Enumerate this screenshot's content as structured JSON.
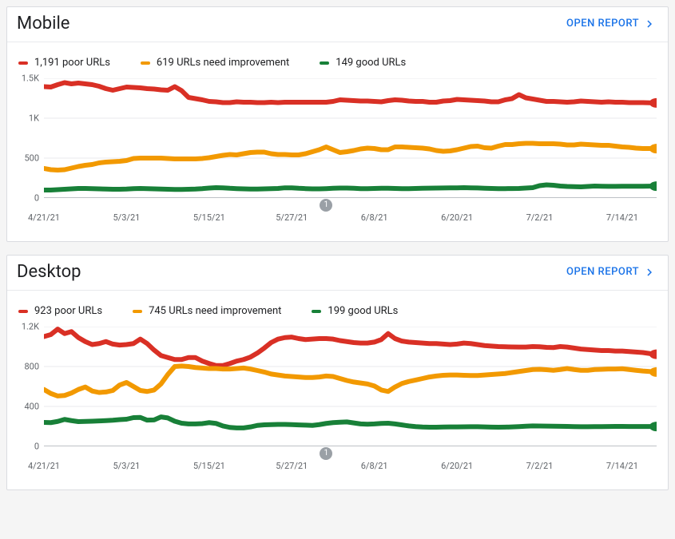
{
  "colors": {
    "poor": "#d93025",
    "need": "#f29900",
    "good": "#188038",
    "grid": "#e8eaed",
    "axis_text": "#5f6368",
    "link": "#1a73e8",
    "event_badge_bg": "#9aa0a6",
    "event_badge_text": "#ffffff",
    "baseline": "#bdc1c6"
  },
  "label_fontsize": 13,
  "tick_fontsize": 11,
  "line_width": 2,
  "end_marker_radius": 4,
  "open_report_label": "OPEN REPORT",
  "panels": [
    {
      "id": "mobile",
      "title": "Mobile",
      "type": "line",
      "legend": [
        {
          "key": "poor",
          "label": "1,191 poor URLs"
        },
        {
          "key": "need",
          "label": "619 URLs need improvement"
        },
        {
          "key": "good",
          "label": "149 good URLs"
        }
      ],
      "yaxis": {
        "min": 0,
        "max": 1500,
        "ticks": [
          0,
          500,
          1000,
          1500
        ],
        "tick_labels": [
          "0",
          "500",
          "1K",
          "1.5K"
        ]
      },
      "xaxis": {
        "n": 90,
        "ticks": [
          0,
          12,
          24,
          36,
          48,
          60,
          72,
          84
        ],
        "tick_labels": [
          "4/21/21",
          "5/3/21",
          "5/15/21",
          "5/27/21",
          "6/8/21",
          "6/20/21",
          "7/2/21",
          "7/14/21"
        ]
      },
      "event": {
        "x": 41,
        "label": "1"
      },
      "series": {
        "poor": [
          1395,
          1390,
          1420,
          1445,
          1430,
          1440,
          1430,
          1420,
          1400,
          1370,
          1350,
          1370,
          1390,
          1385,
          1380,
          1370,
          1365,
          1355,
          1350,
          1395,
          1345,
          1260,
          1245,
          1230,
          1210,
          1205,
          1195,
          1195,
          1205,
          1200,
          1200,
          1195,
          1195,
          1200,
          1195,
          1200,
          1200,
          1200,
          1200,
          1200,
          1200,
          1200,
          1210,
          1230,
          1225,
          1220,
          1215,
          1215,
          1210,
          1205,
          1220,
          1230,
          1225,
          1215,
          1210,
          1210,
          1200,
          1200,
          1215,
          1220,
          1235,
          1230,
          1225,
          1220,
          1215,
          1205,
          1205,
          1230,
          1245,
          1295,
          1255,
          1240,
          1225,
          1210,
          1210,
          1205,
          1200,
          1205,
          1215,
          1210,
          1205,
          1200,
          1205,
          1200,
          1200,
          1195,
          1195,
          1195,
          1193,
          1191
        ],
        "need": [
          370,
          355,
          350,
          355,
          375,
          395,
          410,
          420,
          440,
          450,
          455,
          460,
          470,
          495,
          500,
          500,
          500,
          500,
          495,
          490,
          490,
          490,
          490,
          495,
          505,
          520,
          535,
          545,
          540,
          555,
          570,
          575,
          575,
          555,
          545,
          545,
          540,
          540,
          555,
          580,
          605,
          640,
          605,
          570,
          580,
          595,
          615,
          625,
          620,
          605,
          605,
          640,
          640,
          635,
          630,
          625,
          615,
          595,
          585,
          590,
          605,
          625,
          645,
          650,
          630,
          625,
          650,
          670,
          670,
          680,
          685,
          685,
          680,
          680,
          680,
          675,
          665,
          665,
          675,
          670,
          665,
          660,
          660,
          650,
          640,
          635,
          625,
          620,
          620,
          619
        ],
        "good": [
          100,
          100,
          105,
          110,
          115,
          120,
          120,
          118,
          115,
          112,
          110,
          110,
          112,
          118,
          120,
          118,
          115,
          112,
          110,
          108,
          108,
          110,
          113,
          118,
          125,
          130,
          128,
          122,
          118,
          115,
          112,
          112,
          115,
          118,
          120,
          128,
          128,
          122,
          118,
          115,
          115,
          118,
          122,
          125,
          125,
          122,
          118,
          118,
          120,
          122,
          122,
          120,
          118,
          118,
          120,
          122,
          124,
          125,
          126,
          127,
          128,
          130,
          128,
          126,
          123,
          120,
          118,
          118,
          119,
          120,
          125,
          130,
          155,
          165,
          160,
          150,
          145,
          142,
          140,
          145,
          150,
          148,
          146,
          146,
          147,
          148,
          148,
          148,
          149,
          149
        ]
      }
    },
    {
      "id": "desktop",
      "title": "Desktop",
      "type": "line",
      "legend": [
        {
          "key": "poor",
          "label": "923 poor URLs"
        },
        {
          "key": "need",
          "label": "745 URLs need improvement"
        },
        {
          "key": "good",
          "label": "199 good URLs"
        }
      ],
      "yaxis": {
        "min": 0,
        "max": 1200,
        "ticks": [
          0,
          400,
          800,
          1200
        ],
        "tick_labels": [
          "0",
          "400",
          "800",
          "1.2K"
        ]
      },
      "xaxis": {
        "n": 90,
        "ticks": [
          0,
          12,
          24,
          36,
          48,
          60,
          72,
          84
        ],
        "tick_labels": [
          "4/21/21",
          "5/3/21",
          "5/15/21",
          "5/27/21",
          "6/8/21",
          "6/20/21",
          "7/2/21",
          "7/14/21"
        ]
      },
      "event": {
        "x": 41,
        "label": "1"
      },
      "series": {
        "poor": [
          1100,
          1120,
          1175,
          1130,
          1150,
          1090,
          1050,
          1020,
          1030,
          1050,
          1025,
          1015,
          1020,
          1030,
          1075,
          1030,
          965,
          910,
          890,
          870,
          870,
          890,
          890,
          855,
          830,
          810,
          810,
          830,
          855,
          870,
          895,
          935,
          985,
          1040,
          1075,
          1090,
          1095,
          1080,
          1070,
          1075,
          1080,
          1080,
          1075,
          1060,
          1050,
          1040,
          1035,
          1035,
          1045,
          1070,
          1130,
          1080,
          1055,
          1045,
          1040,
          1035,
          1030,
          1030,
          1025,
          1020,
          1025,
          1035,
          1030,
          1020,
          1010,
          1005,
          1000,
          998,
          996,
          995,
          995,
          1000,
          998,
          992,
          990,
          1000,
          995,
          985,
          975,
          970,
          965,
          960,
          960,
          955,
          955,
          950,
          945,
          940,
          930,
          923
        ],
        "need": [
          570,
          530,
          505,
          510,
          535,
          570,
          595,
          555,
          540,
          545,
          560,
          615,
          640,
          600,
          560,
          550,
          565,
          625,
          720,
          800,
          805,
          800,
          790,
          785,
          780,
          780,
          775,
          775,
          780,
          785,
          775,
          760,
          745,
          725,
          715,
          705,
          700,
          695,
          690,
          690,
          695,
          705,
          700,
          680,
          660,
          645,
          635,
          625,
          605,
          565,
          550,
          595,
          630,
          650,
          665,
          680,
          695,
          705,
          712,
          715,
          715,
          712,
          710,
          710,
          715,
          720,
          725,
          730,
          740,
          750,
          760,
          770,
          772,
          768,
          762,
          770,
          780,
          770,
          762,
          762,
          770,
          772,
          775,
          775,
          778,
          770,
          762,
          755,
          750,
          745
        ],
        "good": [
          240,
          238,
          250,
          270,
          258,
          248,
          250,
          252,
          255,
          258,
          262,
          268,
          272,
          288,
          290,
          263,
          265,
          295,
          285,
          252,
          232,
          225,
          225,
          228,
          238,
          230,
          205,
          190,
          185,
          185,
          195,
          210,
          216,
          218,
          220,
          220,
          218,
          215,
          213,
          210,
          218,
          230,
          238,
          242,
          245,
          235,
          225,
          222,
          225,
          230,
          232,
          225,
          215,
          205,
          198,
          194,
          192,
          192,
          194,
          195,
          195,
          196,
          197,
          197,
          195,
          193,
          192,
          193,
          195,
          198,
          202,
          205,
          204,
          203,
          202,
          201,
          200,
          198,
          197,
          197,
          198,
          198,
          199,
          200,
          200,
          199,
          199,
          199,
          199,
          199
        ]
      }
    }
  ]
}
